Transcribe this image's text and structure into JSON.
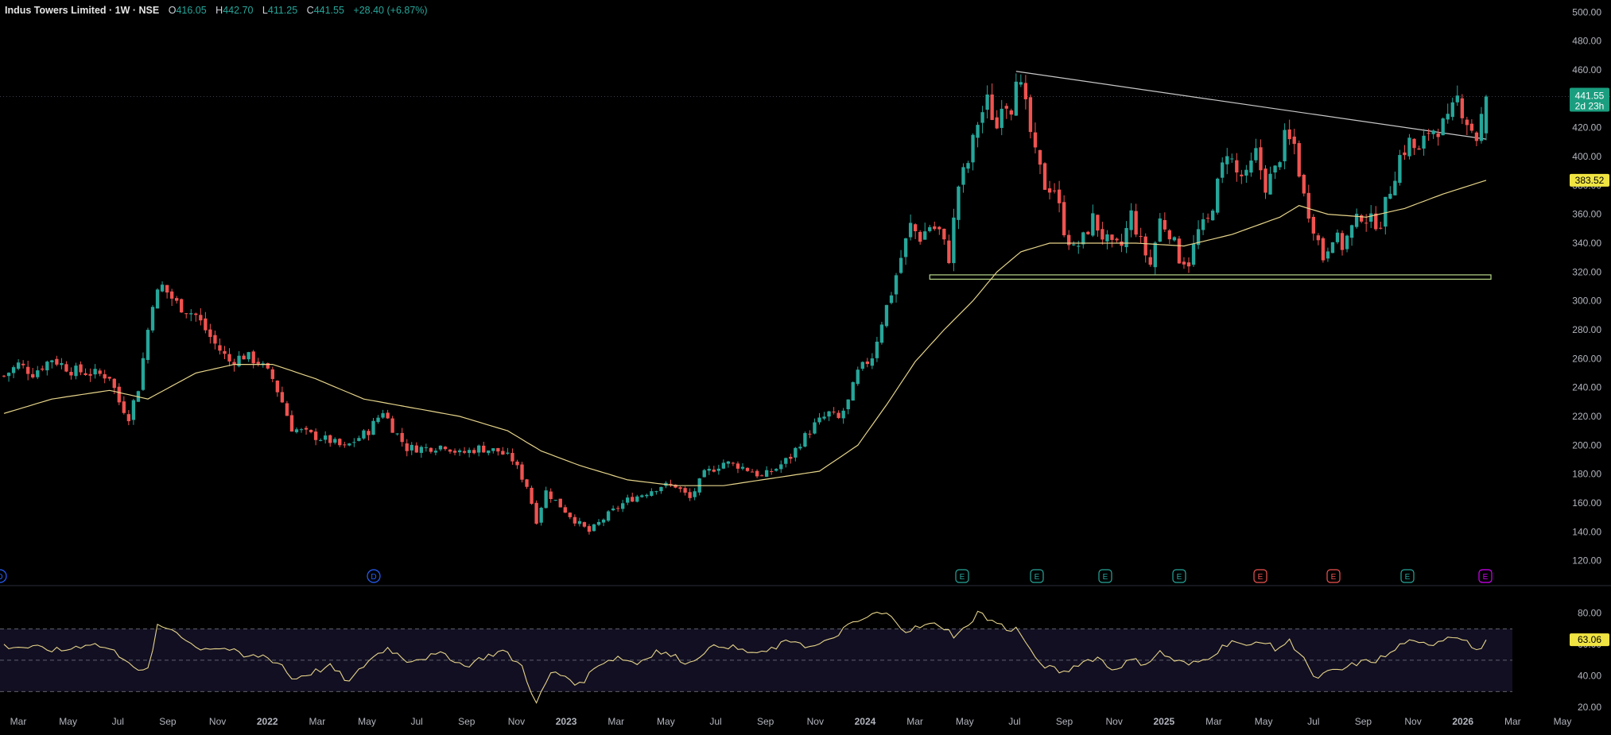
{
  "legend": {
    "symbol": "Indus Towers Limited · 1W · NSE",
    "o_key": "O",
    "o_val": "416.05",
    "h_key": "H",
    "h_val": "442.70",
    "l_key": "L",
    "l_val": "411.25",
    "c_key": "C",
    "c_val": "441.55",
    "change": "+28.40 (+6.87%)"
  },
  "colors": {
    "up": "#26a69a",
    "down": "#ef5350",
    "ma": "#e6d48a",
    "rsi": "#e6d48a",
    "trend": "#c8c8c8",
    "support": "#b9d98a",
    "rsi_band": "#120f22"
  },
  "price_badge": {
    "price": "441.55",
    "countdown": "2d 23h",
    "color": "#1a9e7f"
  },
  "ma_badge": {
    "value": "383.52",
    "color": "#f0e442"
  },
  "rsi_badge": {
    "value": "63.06",
    "color": "#f0e442"
  },
  "chart_data": {
    "type": "candlestick",
    "symbol": "Indus Towers Limited",
    "interval": "1W",
    "exchange": "NSE",
    "price_axis": {
      "ticks": [
        "120.00",
        "140.00",
        "160.00",
        "180.00",
        "200.00",
        "220.00",
        "240.00",
        "260.00",
        "280.00",
        "300.00",
        "320.00",
        "340.00",
        "360.00",
        "380.00",
        "400.00",
        "420.00",
        "440.00",
        "460.00",
        "480.00",
        "500.00"
      ],
      "range": [
        111,
        504
      ]
    },
    "rsi_axis": {
      "ticks": [
        "20.00",
        "40.00",
        "60.00",
        "80.00"
      ],
      "range": [
        16,
        90
      ],
      "overbought": 70,
      "oversold": 30
    },
    "time_axis": [
      "Mar",
      "May",
      "Jul",
      "Sep",
      "Nov",
      "2022",
      "Mar",
      "May",
      "Jul",
      "Sep",
      "Nov",
      "2023",
      "Mar",
      "May",
      "Jul",
      "Sep",
      "Nov",
      "2024",
      "Mar",
      "May",
      "Jul",
      "Sep",
      "Nov",
      "2025",
      "Mar",
      "May",
      "Jul",
      "Sep",
      "Nov",
      "2026",
      "Mar",
      "May"
    ],
    "price_path": [
      [
        0,
        248
      ],
      [
        3,
        256
      ],
      [
        6,
        250
      ],
      [
        10,
        260
      ],
      [
        14,
        252
      ],
      [
        18,
        250
      ],
      [
        22,
        248
      ],
      [
        24,
        230
      ],
      [
        26,
        220
      ],
      [
        28,
        240
      ],
      [
        31,
        300
      ],
      [
        33,
        310
      ],
      [
        36,
        298
      ],
      [
        40,
        290
      ],
      [
        44,
        270
      ],
      [
        47,
        258
      ],
      [
        50,
        262
      ],
      [
        53,
        258
      ],
      [
        56,
        246
      ],
      [
        58,
        230
      ],
      [
        60,
        212
      ],
      [
        64,
        207
      ],
      [
        68,
        203
      ],
      [
        71,
        198
      ],
      [
        73,
        203
      ],
      [
        76,
        210
      ],
      [
        79,
        224
      ],
      [
        81,
        212
      ],
      [
        84,
        198
      ],
      [
        88,
        198
      ],
      [
        92,
        200
      ],
      [
        95,
        194
      ],
      [
        99,
        198
      ],
      [
        103,
        196
      ],
      [
        106,
        190
      ],
      [
        109,
        172
      ],
      [
        111,
        148
      ],
      [
        113,
        168
      ],
      [
        116,
        158
      ],
      [
        119,
        148
      ],
      [
        122,
        140
      ],
      [
        126,
        152
      ],
      [
        130,
        162
      ],
      [
        133,
        166
      ],
      [
        137,
        172
      ],
      [
        140,
        172
      ],
      [
        143,
        163
      ],
      [
        146,
        180
      ],
      [
        150,
        188
      ],
      [
        153,
        186
      ],
      [
        156,
        182
      ],
      [
        158,
        178
      ],
      [
        161,
        184
      ],
      [
        164,
        192
      ],
      [
        166,
        202
      ],
      [
        169,
        214
      ],
      [
        172,
        222
      ],
      [
        174,
        218
      ],
      [
        176,
        230
      ],
      [
        178,
        250
      ],
      [
        181,
        262
      ],
      [
        183,
        286
      ],
      [
        185,
        306
      ],
      [
        187,
        330
      ],
      [
        189,
        352
      ],
      [
        191,
        344
      ],
      [
        193,
        352
      ],
      [
        195,
        348
      ],
      [
        197,
        330
      ],
      [
        199,
        380
      ],
      [
        201,
        396
      ],
      [
        203,
        424
      ],
      [
        205,
        438
      ],
      [
        207,
        420
      ],
      [
        208,
        440
      ],
      [
        210,
        435
      ],
      [
        211,
        459
      ],
      [
        213,
        433
      ],
      [
        215,
        400
      ],
      [
        217,
        380
      ],
      [
        219,
        378
      ],
      [
        221,
        350
      ],
      [
        223,
        335
      ],
      [
        225,
        343
      ],
      [
        227,
        357
      ],
      [
        229,
        345
      ],
      [
        231,
        337
      ],
      [
        233,
        338
      ],
      [
        235,
        360
      ],
      [
        237,
        340
      ],
      [
        239,
        325
      ],
      [
        241,
        356
      ],
      [
        243,
        348
      ],
      [
        245,
        330
      ],
      [
        247,
        327
      ],
      [
        249,
        348
      ],
      [
        251,
        355
      ],
      [
        253,
        380
      ],
      [
        255,
        405
      ],
      [
        257,
        388
      ],
      [
        259,
        385
      ],
      [
        261,
        402
      ],
      [
        263,
        380
      ],
      [
        265,
        390
      ],
      [
        267,
        412
      ],
      [
        269,
        408
      ],
      [
        271,
        372
      ],
      [
        273,
        352
      ],
      [
        275,
        330
      ],
      [
        277,
        346
      ],
      [
        279,
        338
      ],
      [
        281,
        350
      ],
      [
        283,
        360
      ],
      [
        285,
        355
      ],
      [
        287,
        355
      ],
      [
        289,
        378
      ],
      [
        291,
        400
      ],
      [
        293,
        410
      ],
      [
        295,
        402
      ],
      [
        297,
        418
      ],
      [
        299,
        420
      ],
      [
        301,
        423
      ],
      [
        303,
        440
      ],
      [
        305,
        425
      ],
      [
        307,
        413
      ],
      [
        309,
        441.55
      ]
    ],
    "rsi_path": [
      [
        0,
        59
      ],
      [
        6,
        58
      ],
      [
        12,
        56
      ],
      [
        18,
        61
      ],
      [
        22,
        57
      ],
      [
        26,
        50
      ],
      [
        28,
        42
      ],
      [
        30,
        44
      ],
      [
        32,
        71
      ],
      [
        35,
        70
      ],
      [
        37,
        66
      ],
      [
        40,
        58
      ],
      [
        44,
        58
      ],
      [
        47,
        57
      ],
      [
        50,
        52
      ],
      [
        54,
        53
      ],
      [
        58,
        47
      ],
      [
        60,
        38
      ],
      [
        64,
        42
      ],
      [
        68,
        46
      ],
      [
        72,
        36
      ],
      [
        76,
        50
      ],
      [
        80,
        58
      ],
      [
        84,
        50
      ],
      [
        88,
        52
      ],
      [
        92,
        54
      ],
      [
        96,
        46
      ],
      [
        100,
        52
      ],
      [
        104,
        56
      ],
      [
        108,
        46
      ],
      [
        111,
        22
      ],
      [
        114,
        42
      ],
      [
        117,
        40
      ],
      [
        120,
        34
      ],
      [
        124,
        48
      ],
      [
        128,
        52
      ],
      [
        132,
        48
      ],
      [
        136,
        56
      ],
      [
        140,
        52
      ],
      [
        143,
        48
      ],
      [
        146,
        56
      ],
      [
        150,
        60
      ],
      [
        154,
        56
      ],
      [
        158,
        54
      ],
      [
        162,
        60
      ],
      [
        165,
        63
      ],
      [
        168,
        58
      ],
      [
        172,
        62
      ],
      [
        175,
        70
      ],
      [
        179,
        76
      ],
      [
        182,
        80
      ],
      [
        184,
        79
      ],
      [
        186,
        75
      ],
      [
        188,
        69
      ],
      [
        192,
        72
      ],
      [
        195,
        73
      ],
      [
        198,
        66
      ],
      [
        201,
        71
      ],
      [
        203,
        82
      ],
      [
        205,
        76
      ],
      [
        207,
        74
      ],
      [
        209,
        70
      ],
      [
        211,
        70
      ],
      [
        213,
        62
      ],
      [
        215,
        50
      ],
      [
        218,
        45
      ],
      [
        221,
        42
      ],
      [
        224,
        48
      ],
      [
        228,
        52
      ],
      [
        231,
        44
      ],
      [
        235,
        50
      ],
      [
        238,
        48
      ],
      [
        241,
        55
      ],
      [
        244,
        50
      ],
      [
        247,
        47
      ],
      [
        250,
        50
      ],
      [
        253,
        56
      ],
      [
        256,
        63
      ],
      [
        259,
        58
      ],
      [
        262,
        63
      ],
      [
        265,
        57
      ],
      [
        268,
        62
      ],
      [
        271,
        52
      ],
      [
        273,
        38
      ],
      [
        276,
        42
      ],
      [
        279,
        44
      ],
      [
        282,
        48
      ],
      [
        286,
        50
      ],
      [
        289,
        54
      ],
      [
        292,
        62
      ],
      [
        295,
        60
      ],
      [
        298,
        61
      ],
      [
        301,
        65
      ],
      [
        303,
        66
      ],
      [
        305,
        62
      ],
      [
        307,
        55
      ],
      [
        309,
        63.06
      ]
    ],
    "ma_path": [
      [
        0,
        222
      ],
      [
        10,
        232
      ],
      [
        22,
        238
      ],
      [
        30,
        232
      ],
      [
        40,
        250
      ],
      [
        48,
        256
      ],
      [
        56,
        256
      ],
      [
        65,
        246
      ],
      [
        75,
        232
      ],
      [
        85,
        226
      ],
      [
        95,
        220
      ],
      [
        105,
        210
      ],
      [
        112,
        196
      ],
      [
        120,
        186
      ],
      [
        130,
        176
      ],
      [
        140,
        172
      ],
      [
        150,
        172
      ],
      [
        160,
        177
      ],
      [
        170,
        182
      ],
      [
        178,
        200
      ],
      [
        184,
        228
      ],
      [
        190,
        258
      ],
      [
        196,
        280
      ],
      [
        202,
        300
      ],
      [
        207,
        320
      ],
      [
        212,
        334
      ],
      [
        218,
        340
      ],
      [
        226,
        340
      ],
      [
        236,
        340
      ],
      [
        246,
        338
      ],
      [
        256,
        346
      ],
      [
        266,
        358
      ],
      [
        270,
        366
      ],
      [
        276,
        360
      ],
      [
        284,
        358
      ],
      [
        292,
        364
      ],
      [
        300,
        374
      ],
      [
        309,
        383.52
      ]
    ],
    "trendline": [
      [
        211,
        459
      ],
      [
        309,
        412
      ]
    ],
    "support_zone": [
      315,
      318
    ],
    "event_markers": [
      "D",
      "D",
      "E",
      "E",
      "E",
      "E",
      "E",
      "E",
      "E",
      "E"
    ]
  }
}
